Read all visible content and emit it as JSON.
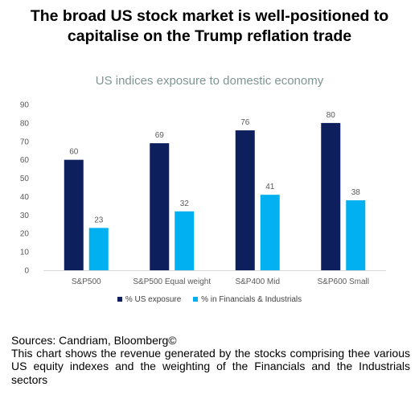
{
  "headline": "The broad US stock market is well-positioned to capitalise on the Trump reflation trade",
  "chart_data": {
    "type": "bar",
    "title": "US indices exposure to domestic economy",
    "categories": [
      "S&P500",
      "S&P500 Equal weight",
      "S&P400 Mid",
      "S&P600 Small"
    ],
    "series": [
      {
        "name": "% US exposure",
        "values": [
          60,
          69,
          76,
          80
        ],
        "color": "#0d1f5c"
      },
      {
        "name": "% in Financials & Industrials",
        "values": [
          23,
          32,
          41,
          38
        ],
        "color": "#00b0f0"
      }
    ],
    "ylim": [
      0,
      90
    ],
    "yticks": [
      0,
      10,
      20,
      30,
      40,
      50,
      60,
      70,
      80,
      90
    ],
    "grid": false,
    "legend_position": "bottom"
  },
  "footer": {
    "sources": "Sources: Candriam, Bloomberg©",
    "description": "This chart shows the revenue generated by the stocks comprising thee various US equity indexes and the weighting of the Financials and the Industrials sectors"
  }
}
